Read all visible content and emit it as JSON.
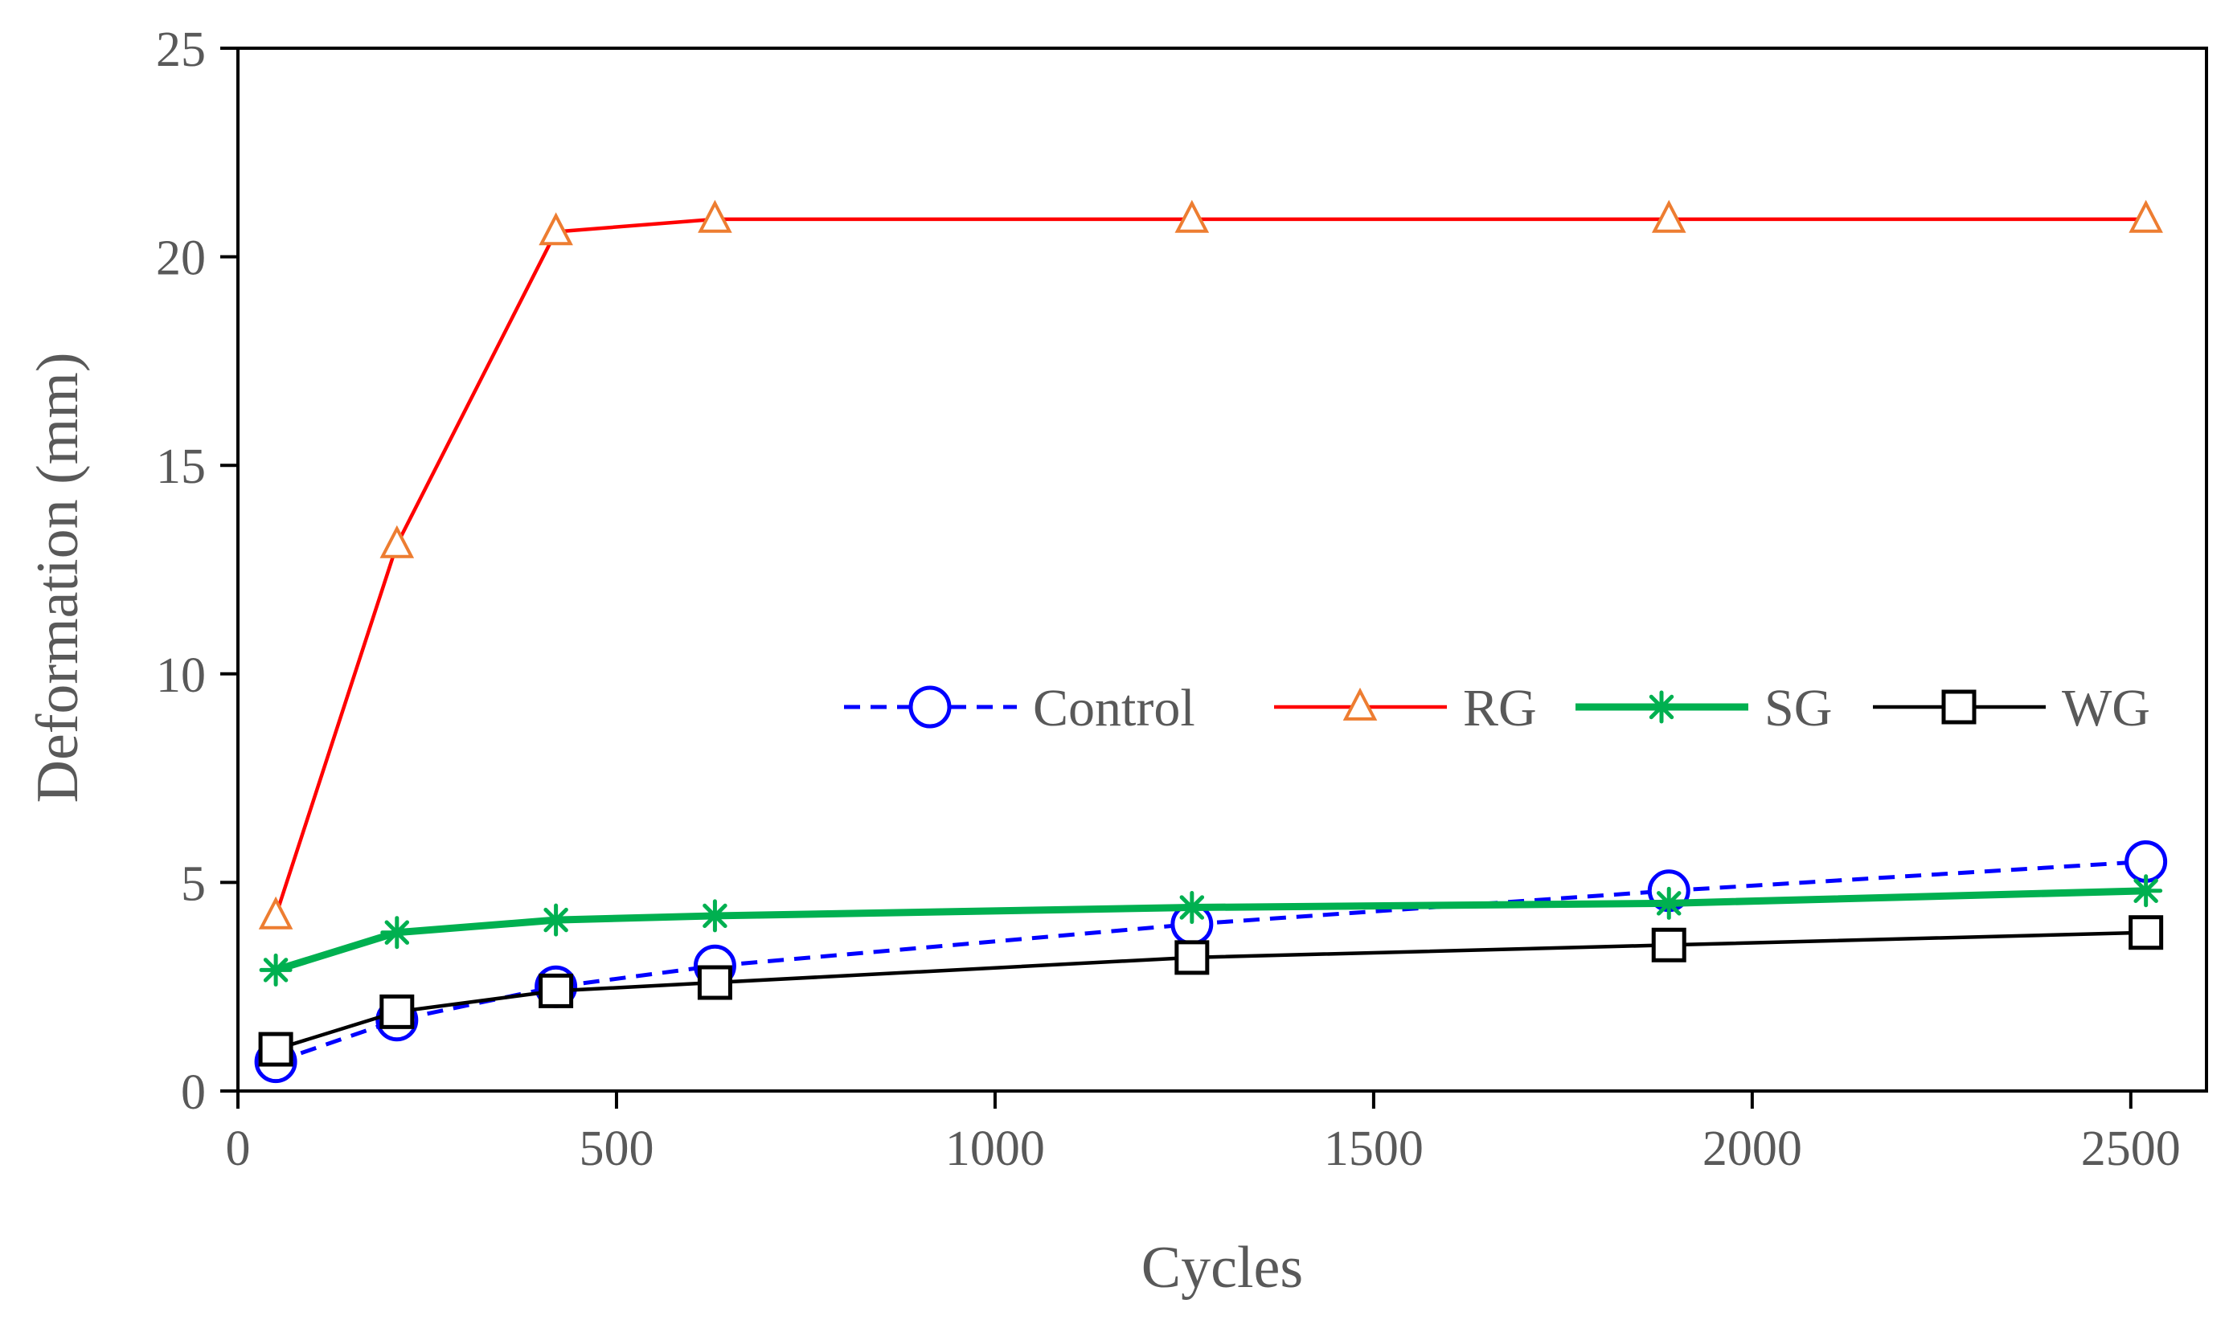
{
  "chart_data": {
    "type": "line",
    "title": "",
    "xlabel": "Cycles",
    "ylabel": "Deformation (mm)",
    "xlim": [
      0,
      2600
    ],
    "ylim": [
      0,
      25
    ],
    "xticks": [
      0,
      500,
      1000,
      1500,
      2000,
      2500
    ],
    "yticks": [
      0,
      5,
      10,
      15,
      20,
      25
    ],
    "grid": false,
    "legend_position": "center-right",
    "x": [
      50,
      210,
      420,
      630,
      1260,
      1890,
      2520
    ],
    "series": [
      {
        "name": "Control",
        "values": [
          0.7,
          1.7,
          2.5,
          3.0,
          4.0,
          4.8,
          5.5
        ],
        "color": "#0000FF",
        "marker_color": "#0000FF",
        "line_style": "dashed",
        "marker": "circle"
      },
      {
        "name": "RG",
        "values": [
          4.2,
          13.1,
          20.6,
          20.9,
          20.9,
          20.9,
          20.9
        ],
        "color": "#FF0000",
        "marker_color": "#ED7D31",
        "line_style": "solid",
        "marker": "triangle"
      },
      {
        "name": "SG",
        "values": [
          2.9,
          3.8,
          4.1,
          4.2,
          4.4,
          4.5,
          4.8
        ],
        "color": "#00B050",
        "marker_color": "#00B050",
        "line_style": "solid-thick",
        "marker": "asterisk"
      },
      {
        "name": "WG",
        "values": [
          1.0,
          1.9,
          2.4,
          2.6,
          3.2,
          3.5,
          3.8
        ],
        "color": "#000000",
        "marker_color": "#000000",
        "line_style": "solid",
        "marker": "square"
      }
    ]
  }
}
